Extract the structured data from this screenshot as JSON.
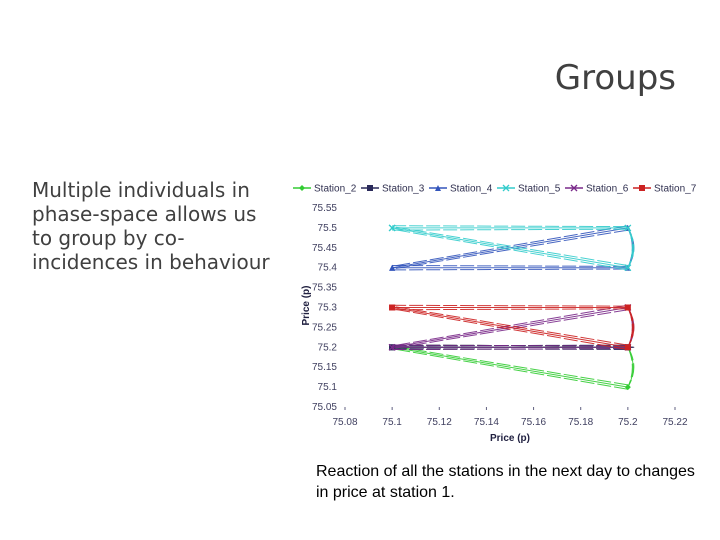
{
  "slide": {
    "title": "Groups",
    "body": "Multiple individuals in phase-space allows us to group by co-incidences in behaviour",
    "caption": "Reaction of all the stations in the next day to changes in price at station 1."
  },
  "chart_data": {
    "type": "line",
    "xlabel": "Price (p)",
    "ylabel": "Price (p)",
    "xlim": [
      75.08,
      75.22
    ],
    "ylim": [
      75.05,
      75.55
    ],
    "x_ticks": [
      75.08,
      75.1,
      75.12,
      75.14,
      75.16,
      75.18,
      75.2,
      75.22
    ],
    "x_tick_labels": [
      "75.08",
      "75.1",
      "75.12",
      "75.14",
      "75.16",
      "75.18",
      "75.2",
      "75.22"
    ],
    "y_ticks": [
      75.05,
      75.1,
      75.15,
      75.2,
      75.25,
      75.3,
      75.35,
      75.4,
      75.45,
      75.5,
      75.55
    ],
    "y_tick_labels": [
      "75.05",
      "75.1",
      "75.15",
      "75.2",
      "75.25",
      "75.3",
      "75.35",
      "75.4",
      "75.45",
      "75.5",
      "75.55"
    ],
    "grid": false,
    "legend_position": "top",
    "series": [
      {
        "name": "Station_2",
        "color": "#33cc33",
        "marker": "diamond",
        "x": [
          75.1,
          75.2,
          75.2,
          75.1
        ],
        "y": [
          75.2,
          75.2,
          75.1,
          75.2
        ]
      },
      {
        "name": "Station_3",
        "color": "#2a2a5a",
        "marker": "square",
        "x": [
          75.1,
          75.2,
          75.2,
          75.1
        ],
        "y": [
          75.2,
          75.2,
          75.2,
          75.2
        ]
      },
      {
        "name": "Station_4",
        "color": "#3355bb",
        "marker": "triangle",
        "x": [
          75.1,
          75.2,
          75.2,
          75.1
        ],
        "y": [
          75.4,
          75.4,
          75.5,
          75.4
        ]
      },
      {
        "name": "Station_5",
        "color": "#33cccc",
        "marker": "x",
        "x": [
          75.1,
          75.2,
          75.2,
          75.1
        ],
        "y": [
          75.5,
          75.5,
          75.4,
          75.5
        ]
      },
      {
        "name": "Station_6",
        "color": "#7a2a8a",
        "marker": "x",
        "x": [
          75.1,
          75.2,
          75.2,
          75.1
        ],
        "y": [
          75.2,
          75.2,
          75.3,
          75.2
        ]
      },
      {
        "name": "Station_7",
        "color": "#cc2222",
        "marker": "square",
        "x": [
          75.1,
          75.2,
          75.2,
          75.1
        ],
        "y": [
          75.3,
          75.3,
          75.2,
          75.3
        ]
      }
    ]
  }
}
